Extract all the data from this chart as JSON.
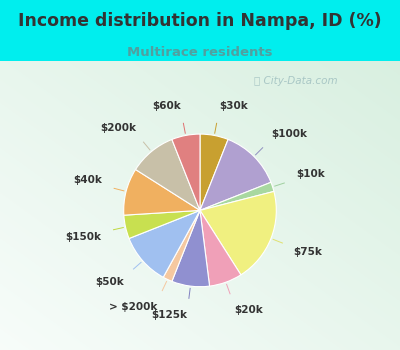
{
  "title": "Income distribution in Nampa, ID (%)",
  "subtitle": "Multirace residents",
  "watermark": "ⓘ City-Data.com",
  "labels": [
    "$30k",
    "$100k",
    "$10k",
    "$75k",
    "$20k",
    "$125k",
    "> $200k",
    "$50k",
    "$150k",
    "$40k",
    "$200k",
    "$60k"
  ],
  "values": [
    6,
    13,
    2,
    20,
    7,
    8,
    2,
    11,
    5,
    10,
    10,
    6
  ],
  "colors": [
    "#c8a030",
    "#b0a0d0",
    "#a8d8a0",
    "#f0f080",
    "#f0a0b8",
    "#9090d0",
    "#f5c8a0",
    "#a0c0f0",
    "#c8e050",
    "#f0b060",
    "#c8c0a8",
    "#e08080"
  ],
  "bg_cyan": "#00eeee",
  "bg_chart": "#e0f0e8",
  "title_color": "#333333",
  "subtitle_color": "#50a0a0",
  "watermark_color": "#a0c0c0",
  "label_color": "#333333",
  "label_fontsize": 7.5,
  "title_fontsize": 12.5,
  "subtitle_fontsize": 9.5,
  "startangle": 90,
  "label_r": 1.32,
  "inner_r": 1.03,
  "line_colors": [
    "#c8a030",
    "#9090c0",
    "#a0d0a0",
    "#e0e070",
    "#f0a0b8",
    "#8080c0",
    "#f5c8a0",
    "#a0c0f0",
    "#c0d840",
    "#f0b060",
    "#c8c0a8",
    "#e07070"
  ]
}
